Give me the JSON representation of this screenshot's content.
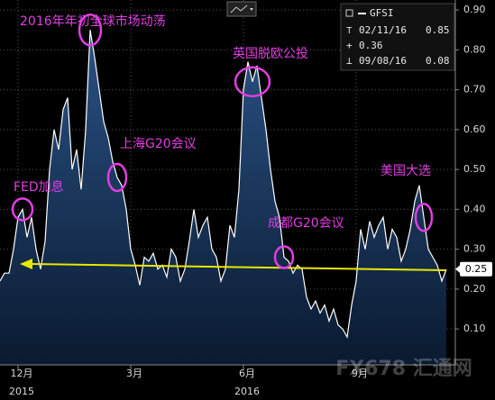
{
  "chart_data": {
    "type": "area",
    "series": [
      {
        "name": "GFSI",
        "color": "#ffffff",
        "fill": "#1d406c",
        "values": [
          0.22,
          0.24,
          0.24,
          0.3,
          0.38,
          0.4,
          0.33,
          0.38,
          0.3,
          0.25,
          0.32,
          0.5,
          0.6,
          0.55,
          0.65,
          0.68,
          0.5,
          0.55,
          0.45,
          0.6,
          0.85,
          0.78,
          0.7,
          0.62,
          0.58,
          0.52,
          0.48,
          0.46,
          0.4,
          0.3,
          0.26,
          0.21,
          0.28,
          0.27,
          0.29,
          0.25,
          0.26,
          0.23,
          0.3,
          0.28,
          0.22,
          0.25,
          0.32,
          0.4,
          0.33,
          0.36,
          0.38,
          0.3,
          0.28,
          0.22,
          0.25,
          0.36,
          0.33,
          0.45,
          0.7,
          0.77,
          0.72,
          0.76,
          0.68,
          0.6,
          0.5,
          0.42,
          0.38,
          0.28,
          0.27,
          0.24,
          0.26,
          0.25,
          0.18,
          0.15,
          0.17,
          0.14,
          0.16,
          0.12,
          0.15,
          0.11,
          0.1,
          0.08,
          0.16,
          0.22,
          0.35,
          0.3,
          0.37,
          0.33,
          0.36,
          0.38,
          0.3,
          0.35,
          0.33,
          0.27,
          0.3,
          0.35,
          0.42,
          0.46,
          0.38,
          0.3,
          0.28,
          0.26,
          0.22,
          0.25
        ]
      }
    ],
    "ylim": [
      0.01,
      0.925
    ],
    "yticks": [
      {
        "value": 0.1,
        "label": "0.10"
      },
      {
        "value": 0.2,
        "label": "0.20"
      },
      {
        "value": 0.3,
        "label": "0.30"
      },
      {
        "value": 0.4,
        "label": "0.40"
      },
      {
        "value": 0.5,
        "label": "0.50"
      },
      {
        "value": 0.6,
        "label": "0.60"
      },
      {
        "value": 0.7,
        "label": "0.70"
      },
      {
        "value": 0.8,
        "label": "0.80"
      },
      {
        "value": 0.9,
        "label": "0.90"
      }
    ],
    "xticks": [
      {
        "value": 4,
        "label": "12月"
      },
      {
        "value": 29,
        "label": "3月"
      },
      {
        "value": 54,
        "label": "6月"
      },
      {
        "value": 79,
        "label": "9月"
      }
    ],
    "year_ticks": [
      {
        "value": 4,
        "label": "2015"
      },
      {
        "value": 54,
        "label": "2016"
      }
    ],
    "grid": true,
    "legend": {
      "name": "GFSI",
      "high": {
        "date": "02/11/16",
        "value": 0.85
      },
      "average": 0.36,
      "low": {
        "date": "09/08/16",
        "value": 0.08
      }
    },
    "annotations": [
      "2016年年初全球市场动荡",
      "上海G20会议",
      "FED加息",
      "英国脱欧公投",
      "成都G20会议",
      "美国大选"
    ],
    "watermark": "FX678 汇通网"
  }
}
